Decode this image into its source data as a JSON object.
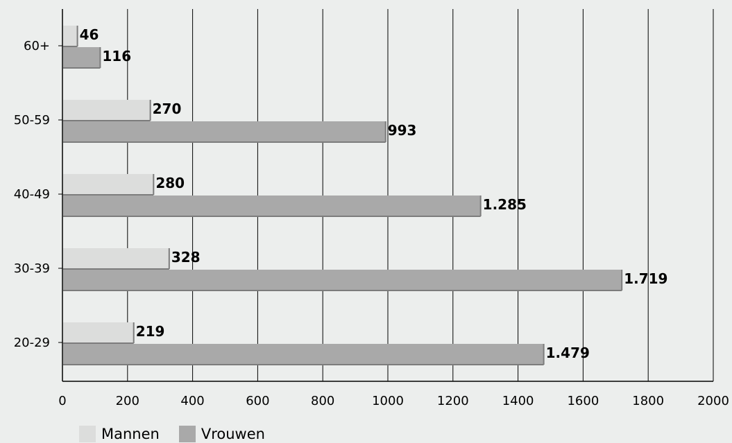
{
  "chart_data": {
    "type": "bar",
    "orientation": "horizontal",
    "categories": [
      "60+",
      "50-59",
      "40-49",
      "30-39",
      "20-29"
    ],
    "series": [
      {
        "name": "Mannen",
        "values": [
          46,
          270,
          280,
          328,
          219
        ],
        "labels": [
          "46",
          "270",
          "280",
          "328",
          "219"
        ],
        "color": "#dcdddc"
      },
      {
        "name": "Vrouwen",
        "values": [
          116,
          993,
          1285,
          1719,
          1479
        ],
        "labels": [
          "116",
          "993",
          "1.285",
          "1.719",
          "1.479"
        ],
        "color": "#a9a9a9"
      }
    ],
    "xlim": [
      0,
      2000
    ],
    "xticks": [
      "0",
      "200",
      "400",
      "600",
      "800",
      "1000",
      "1200",
      "1400",
      "1600",
      "1800",
      "2000"
    ],
    "grid": "vertical",
    "legend_position": "bottom-left",
    "background": "#eceeed"
  }
}
